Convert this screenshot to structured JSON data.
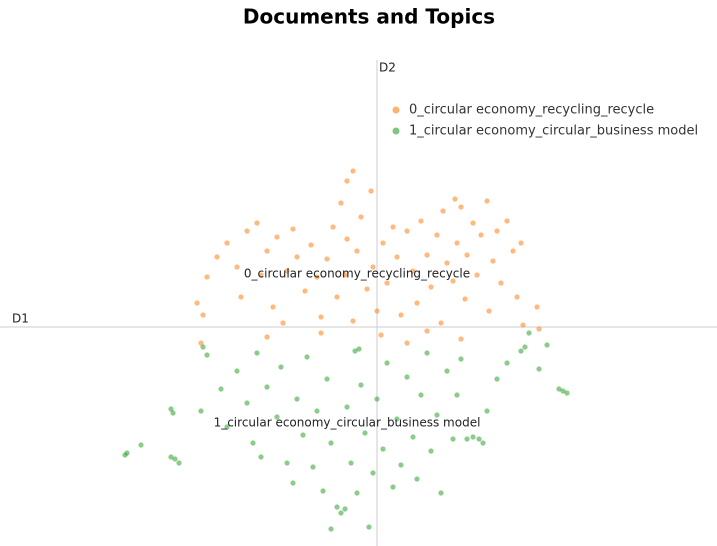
{
  "chart_data": {
    "type": "scatter",
    "title": "Documents and Topics",
    "xlabel": "D1",
    "ylabel": "D2",
    "xlim": [
      -18.85,
      17
    ],
    "ylim": [
      -10.95,
      13.85
    ],
    "series": [
      {
        "name": "0_circular economy_recycling_recycle",
        "color": "#ff7f0e",
        "x": [
          -9,
          -8.5,
          -8.7,
          -8,
          -7.5,
          -7,
          -6.8,
          -6.5,
          -6,
          -5.8,
          -5.5,
          -5,
          -5.2,
          -4.7,
          -4.5,
          -4.2,
          -4,
          -3.6,
          -3.3,
          -3,
          -2.8,
          -2.5,
          -2.2,
          -2,
          -1.8,
          -1.6,
          -1.5,
          -1.5,
          -1.2,
          -1,
          -0.8,
          -0.5,
          -0.3,
          -0.2,
          0,
          0.3,
          0.5,
          0.8,
          1,
          1.2,
          1.5,
          1.8,
          2,
          2.2,
          2.5,
          2.7,
          3,
          3.2,
          3.3,
          3.5,
          3.8,
          4,
          4.2,
          4.4,
          4.5,
          4.8,
          5,
          5.2,
          5.5,
          5.6,
          5.8,
          6,
          6.2,
          6.5,
          6.8,
          7,
          7.2,
          -8.8,
          -5.5,
          -2.8,
          0.2,
          2.5,
          4.2,
          7.3,
          8,
          8.1,
          -1.2,
          3.9,
          1.5
        ],
        "y": [
          1.2,
          2.5,
          0.6,
          3.5,
          4.2,
          3,
          1.5,
          4.8,
          5.2,
          2.6,
          3.8,
          4.5,
          1,
          0.2,
          2.8,
          4.9,
          3.5,
          1.8,
          4.1,
          2.5,
          0.5,
          3.4,
          5,
          1.5,
          6.2,
          2.6,
          4.4,
          7.3,
          0.3,
          3.8,
          5.5,
          1.9,
          6.8,
          3,
          0.8,
          4.2,
          2.2,
          5,
          3.5,
          0.6,
          4.8,
          2.8,
          1.2,
          5.3,
          3.6,
          2,
          4.6,
          0.2,
          5.8,
          3.2,
          2.3,
          4.2,
          6,
          1.4,
          3.6,
          5.2,
          2.6,
          4.6,
          6.3,
          0.8,
          3.3,
          4.8,
          2.2,
          5.3,
          3.8,
          1.5,
          4.2,
          -0.8,
          -0.5,
          -0.3,
          -0.4,
          -0.2,
          -0.6,
          0.1,
          1,
          -0.1,
          7.8,
          6.4,
          -0.8
        ]
      },
      {
        "name": "1_circular economy_circular_business model",
        "color": "#2ca02c",
        "x": [
          -12.6,
          -12.5,
          -11.8,
          -10.1,
          -9.9,
          -10.3,
          -10.2,
          -10.3,
          -8.7,
          -8.5,
          -8.8,
          -7.8,
          -7.5,
          -7,
          -6.5,
          -6.2,
          -6,
          -5.8,
          -5.5,
          -5,
          -4.8,
          -4.5,
          -4.2,
          -4,
          -3.7,
          -3.5,
          -3.2,
          -3,
          -2.7,
          -2.5,
          -2.3,
          -2,
          -1.8,
          -1.6,
          -1.5,
          -1.3,
          -1.1,
          -1,
          -0.8,
          -0.6,
          -0.4,
          -2.3,
          -0.2,
          0,
          0.3,
          0.5,
          0.8,
          1,
          1.2,
          1.5,
          1.8,
          2,
          2.2,
          2.5,
          2.7,
          3,
          3.2,
          3.5,
          3.8,
          4,
          4.2,
          4.5,
          4.8,
          5.1,
          5.3,
          5.5,
          6,
          6.5,
          7.2,
          7.4,
          8.1,
          8.5,
          9.1,
          9.3,
          9.5,
          7.6,
          -0.9
        ],
        "y": [
          -6.4,
          -6.3,
          -5.9,
          -6.6,
          -6.8,
          -6.5,
          -4.3,
          -4.1,
          -1,
          -1.4,
          -4.2,
          -3.1,
          -5,
          -2.2,
          -3.8,
          -5.8,
          -1.3,
          -6.5,
          -3,
          -4.5,
          -2,
          -6.8,
          -7.8,
          -3.6,
          -5.4,
          -1.5,
          -7,
          -4.2,
          -8.2,
          -2.6,
          -5.8,
          -9,
          -9.3,
          -9.1,
          -4,
          -6.8,
          -1.2,
          -8.3,
          -2.9,
          -5.3,
          -10,
          -10.1,
          -7.3,
          -3.6,
          -6.1,
          -1.8,
          -8,
          -4.6,
          -6.9,
          -2.5,
          -5.5,
          -7.6,
          -3.4,
          -1.3,
          -6.2,
          -4.4,
          -8.3,
          -2.2,
          -5.6,
          -3.4,
          -1.6,
          -5.6,
          -5.5,
          -5.6,
          -5.8,
          -4.2,
          -2.6,
          -1.8,
          -1.2,
          -1,
          -2.1,
          -0.9,
          -3.1,
          -3.2,
          -3.3,
          -0.3,
          -1.1
        ]
      }
    ],
    "annotations": [
      {
        "text": "0_circular economy_recycling_recycle",
        "x": -1,
        "y": 2.65
      },
      {
        "text": "1_circular economy_circular_business model",
        "x": -1.5,
        "y": -4.8
      }
    ],
    "legend": "top-right"
  }
}
